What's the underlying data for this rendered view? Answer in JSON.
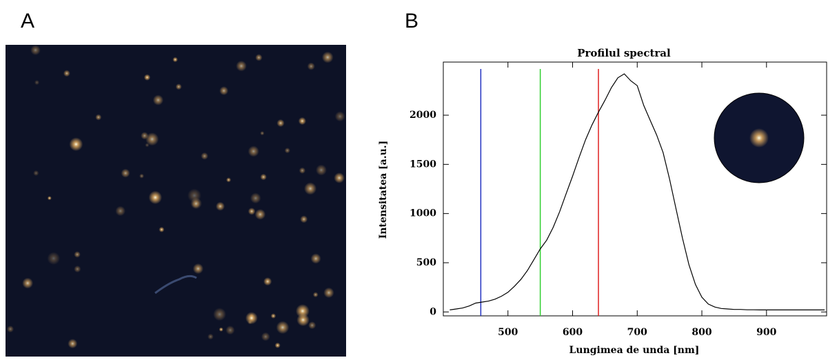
{
  "panel_a": {
    "label": "A"
  },
  "chart_data": {
    "type": "line",
    "panel_label": "B",
    "title": "Profilul spectral",
    "xlabel": "Lungimea de unda [nm]",
    "ylabel": "Intensitatea [a.u.]",
    "x": [
      410,
      420,
      430,
      440,
      450,
      460,
      470,
      480,
      490,
      500,
      510,
      520,
      530,
      540,
      550,
      560,
      570,
      580,
      590,
      600,
      610,
      620,
      630,
      640,
      650,
      660,
      670,
      680,
      690,
      700,
      710,
      720,
      730,
      740,
      750,
      760,
      770,
      780,
      790,
      800,
      810,
      820,
      830,
      840,
      850,
      860,
      870,
      880,
      890,
      900,
      910,
      920,
      930,
      940,
      950,
      960,
      970,
      980,
      990
    ],
    "values": [
      20,
      30,
      40,
      60,
      90,
      100,
      110,
      130,
      160,
      200,
      260,
      330,
      420,
      530,
      640,
      730,
      860,
      1020,
      1200,
      1380,
      1570,
      1750,
      1900,
      2030,
      2150,
      2280,
      2380,
      2420,
      2350,
      2300,
      2100,
      1950,
      1800,
      1620,
      1350,
      1050,
      750,
      480,
      280,
      150,
      80,
      50,
      35,
      30,
      25,
      25,
      22,
      22,
      20,
      20,
      20,
      20,
      20,
      20,
      20,
      20,
      20,
      20,
      20
    ],
    "color": "#000000",
    "vlines": [
      {
        "value": 458,
        "color": "#2030c0"
      },
      {
        "value": 550,
        "color": "#30d030"
      },
      {
        "value": 640,
        "color": "#e02020"
      }
    ],
    "xlim": [
      400,
      993
    ],
    "xticks": [
      500,
      600,
      700,
      800,
      900
    ],
    "ylim": [
      -40,
      2540
    ],
    "yticks": [
      0,
      500,
      1000,
      1500,
      2000
    ]
  }
}
